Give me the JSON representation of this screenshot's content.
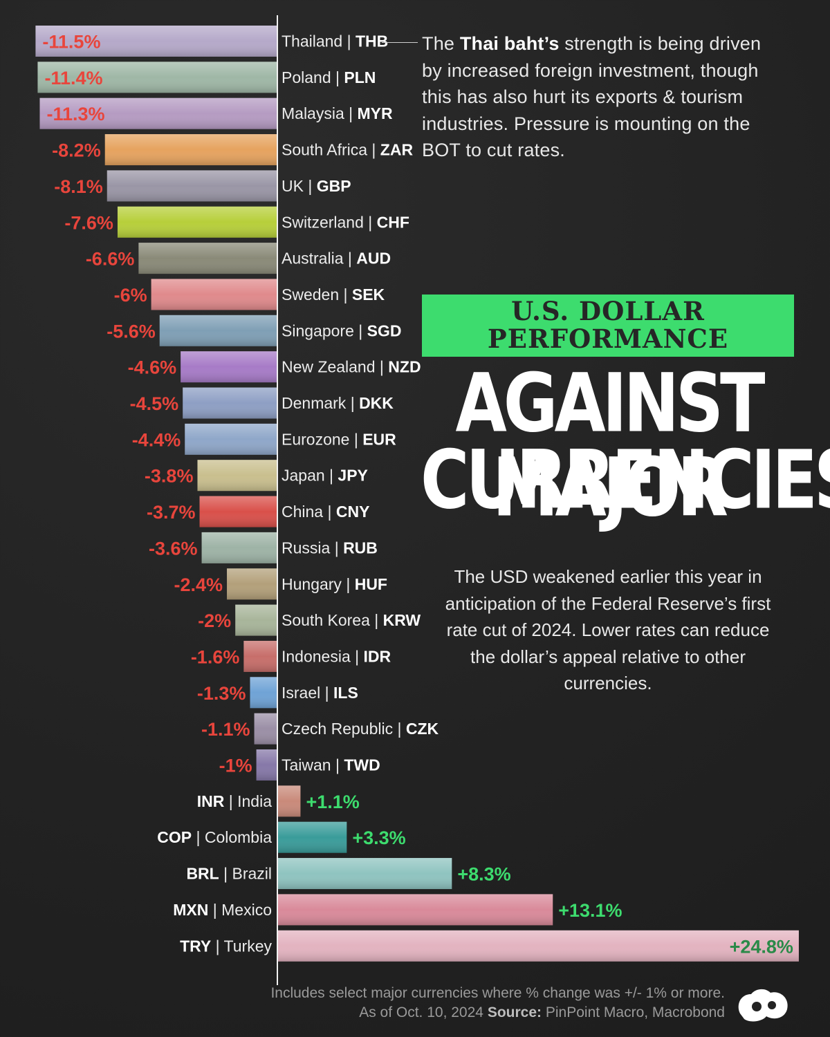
{
  "annotation": {
    "prefix": "The",
    "bold": "Thai baht’s",
    "rest": "strength is being driven by increased foreign investment, though this has also hurt its exports & tourism industries. Pressure is mounting on the BOT to cut rates."
  },
  "title": {
    "line1": "U.S. DOLLAR",
    "line2": "PERFORMANCE",
    "line3": "AGAINST MAJOR",
    "line4": "CURRENCIES"
  },
  "description": "The USD weakened earlier this year in anticipation of the Federal Reserve’s first rate cut of 2024. Lower rates can reduce the dollar’s appeal relative to other currencies.",
  "footer": {
    "note": "Includes select major currencies where % change was +/- 1% or more.",
    "date": "As of Oct. 10, 2024",
    "source_label": "Source:",
    "source": "PinPoint Macro, Macrobond"
  },
  "colors": {
    "negative": "#e8453c",
    "positive": "#3ddc6e",
    "title_box": "#3ddc6e",
    "background": "#232323"
  },
  "chart_data": {
    "type": "bar",
    "orientation": "horizontal",
    "unit": "%",
    "series": [
      {
        "values": [
          -11.5,
          -11.4,
          -11.3,
          -8.2,
          -8.1,
          -7.6,
          -6.6,
          -6,
          -5.6,
          -4.6,
          -4.5,
          -4.4,
          -3.8,
          -3.7,
          -3.6,
          -2.4,
          -2,
          -1.6,
          -1.3,
          -1.1,
          -1,
          1.1,
          3.3,
          8.3,
          13.1,
          24.8
        ]
      }
    ],
    "categories": [
      {
        "country": "Thailand",
        "code": "THB",
        "label": "-11.5%",
        "color": "#b5a9c9"
      },
      {
        "country": "Poland",
        "code": "PLN",
        "label": "-11.4%",
        "color": "#9fb7a6"
      },
      {
        "country": "Malaysia",
        "code": "MYR",
        "label": "-11.3%",
        "color": "#b59bc2"
      },
      {
        "country": "South Africa",
        "code": "ZAR",
        "label": "-8.2%",
        "color": "#e6a35f"
      },
      {
        "country": "UK",
        "code": "GBP",
        "label": "-8.1%",
        "color": "#9a96a6"
      },
      {
        "country": "Switzerland",
        "code": "CHF",
        "label": "-7.6%",
        "color": "#b7cf3a"
      },
      {
        "country": "Australia",
        "code": "AUD",
        "label": "-6.6%",
        "color": "#8a8a78"
      },
      {
        "country": "Sweden",
        "code": "SEK",
        "label": "-6%",
        "color": "#e08a8c"
      },
      {
        "country": "Singapore",
        "code": "SGD",
        "label": "-5.6%",
        "color": "#7f9fb5"
      },
      {
        "country": "New Zealand",
        "code": "NZD",
        "label": "-4.6%",
        "color": "#a77bc7"
      },
      {
        "country": "Denmark",
        "code": "DKK",
        "label": "-4.5%",
        "color": "#8e9fc4"
      },
      {
        "country": "Eurozone",
        "code": "EUR",
        "label": "-4.4%",
        "color": "#8fa7c9"
      },
      {
        "country": "Japan",
        "code": "JPY",
        "label": "-3.8%",
        "color": "#c9bf8e"
      },
      {
        "country": "China",
        "code": "CNY",
        "label": "-3.7%",
        "color": "#d9504a"
      },
      {
        "country": "Russia",
        "code": "RUB",
        "label": "-3.6%",
        "color": "#9eb3a6"
      },
      {
        "country": "Hungary",
        "code": "HUF",
        "label": "-2.4%",
        "color": "#b3a07a"
      },
      {
        "country": "South Korea",
        "code": "KRW",
        "label": "-2%",
        "color": "#a8b59a"
      },
      {
        "country": "Indonesia",
        "code": "IDR",
        "label": "-1.6%",
        "color": "#c76e6a"
      },
      {
        "country": "Israel",
        "code": "ILS",
        "label": "-1.3%",
        "color": "#6fa3d6"
      },
      {
        "country": "Czech Republic",
        "code": "CZK",
        "label": "-1.1%",
        "color": "#9b8fa6"
      },
      {
        "country": "Taiwan",
        "code": "TWD",
        "label": "-1%",
        "color": "#8678a8"
      },
      {
        "country": "India",
        "code": "INR",
        "label": "+1.1%",
        "color": "#c98a7a"
      },
      {
        "country": "Colombia",
        "code": "COP",
        "label": "+3.3%",
        "color": "#3a9c9a"
      },
      {
        "country": "Brazil",
        "code": "BRL",
        "label": "+8.3%",
        "color": "#8fc4c0"
      },
      {
        "country": "Mexico",
        "code": "MXN",
        "label": "+13.1%",
        "color": "#d98a9a"
      },
      {
        "country": "Turkey",
        "code": "TRY",
        "label": "+24.8%",
        "color": "#e3b3c0"
      }
    ]
  }
}
